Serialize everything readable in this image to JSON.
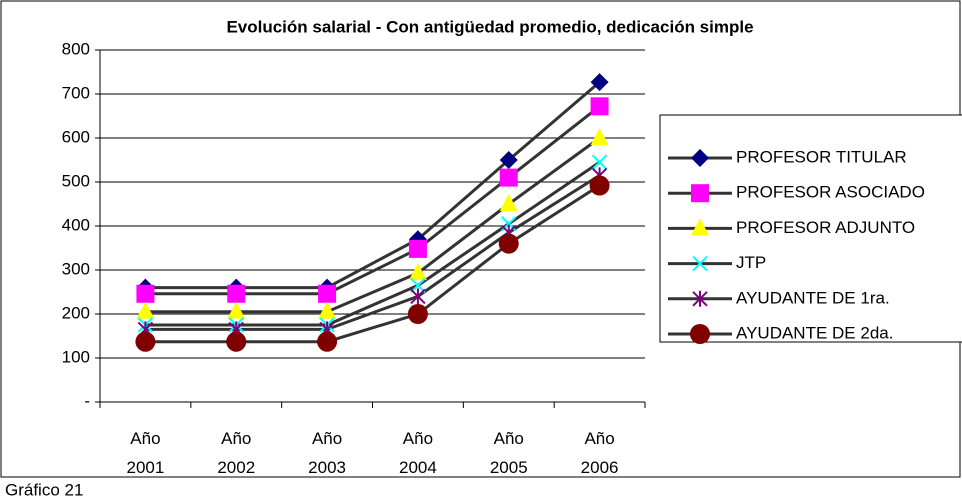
{
  "chart_data": {
    "type": "line",
    "title": "Evolución salarial - Con antigüedad promedio, dedicación simple",
    "caption": "Gráfico 21",
    "categories": [
      "Año 2001",
      "Año 2002",
      "Año 2003",
      "Año 2004",
      "Año 2005",
      "Año 2006"
    ],
    "series": [
      {
        "name": "PROFESOR TITULAR",
        "color": "#000080",
        "marker": "diamond",
        "values": [
          260,
          260,
          260,
          370,
          550,
          727
        ]
      },
      {
        "name": "PROFESOR ASOCIADO",
        "color": "#ff00ff",
        "marker": "square",
        "values": [
          246,
          246,
          246,
          348,
          510,
          672
        ]
      },
      {
        "name": "PROFESOR ADJUNTO",
        "color": "#ffff00",
        "marker": "triangle",
        "values": [
          205,
          205,
          205,
          293,
          450,
          600
        ]
      },
      {
        "name": "JTP",
        "color": "#00ffff",
        "marker": "x",
        "values": [
          175,
          175,
          175,
          265,
          405,
          545
        ]
      },
      {
        "name": "AYUDANTE DE 1ra.",
        "color": "#800080",
        "marker": "star",
        "values": [
          165,
          165,
          165,
          240,
          385,
          515
        ]
      },
      {
        "name": "AYUDANTE DE 2da.",
        "color": "#800000",
        "marker": "circle",
        "values": [
          137,
          137,
          137,
          200,
          360,
          492
        ]
      }
    ],
    "line_color": "#333333",
    "ylim": [
      0,
      800
    ],
    "yticks": [
      {
        "value": 0,
        "label": "-"
      },
      100,
      200,
      300,
      400,
      500,
      600,
      700,
      800
    ],
    "grid": true,
    "legend": "right"
  }
}
